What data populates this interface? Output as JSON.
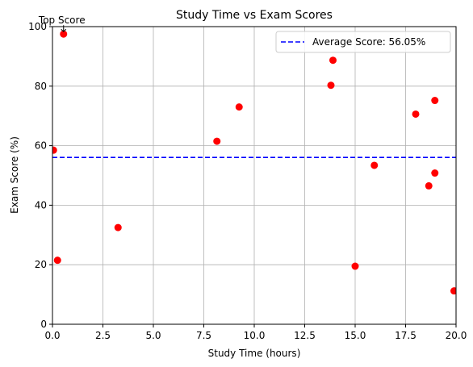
{
  "chart_data": {
    "type": "scatter",
    "title": "Study Time vs Exam Scores",
    "xlabel": "Study Time (hours)",
    "ylabel": "Exam Score (%)",
    "xlim": [
      0,
      20
    ],
    "ylim": [
      0,
      100
    ],
    "xticks": [
      "0.0",
      "2.5",
      "5.0",
      "7.5",
      "10.0",
      "12.5",
      "15.0",
      "17.5",
      "20.0"
    ],
    "yticks": [
      "0",
      "20",
      "40",
      "60",
      "80",
      "100"
    ],
    "grid": true,
    "point_color": "#ff0000",
    "points": [
      {
        "x": 0.05,
        "y": 58.5
      },
      {
        "x": 0.25,
        "y": 21.5
      },
      {
        "x": 0.55,
        "y": 97.5
      },
      {
        "x": 3.25,
        "y": 32.5
      },
      {
        "x": 8.15,
        "y": 61.5
      },
      {
        "x": 9.25,
        "y": 73.0
      },
      {
        "x": 13.8,
        "y": 80.3
      },
      {
        "x": 13.9,
        "y": 88.7
      },
      {
        "x": 15.0,
        "y": 19.5
      },
      {
        "x": 15.95,
        "y": 53.4
      },
      {
        "x": 18.0,
        "y": 70.6
      },
      {
        "x": 18.65,
        "y": 46.5
      },
      {
        "x": 18.95,
        "y": 75.2
      },
      {
        "x": 18.95,
        "y": 50.8
      },
      {
        "x": 19.9,
        "y": 11.2
      }
    ],
    "average": {
      "value": 56.05,
      "label": "Average Score: 56.05%",
      "color": "#0000ff"
    },
    "annotation": {
      "text": "Top Score",
      "point_x": 0.55,
      "point_y": 97.5
    },
    "legend_position": "upper-right"
  }
}
